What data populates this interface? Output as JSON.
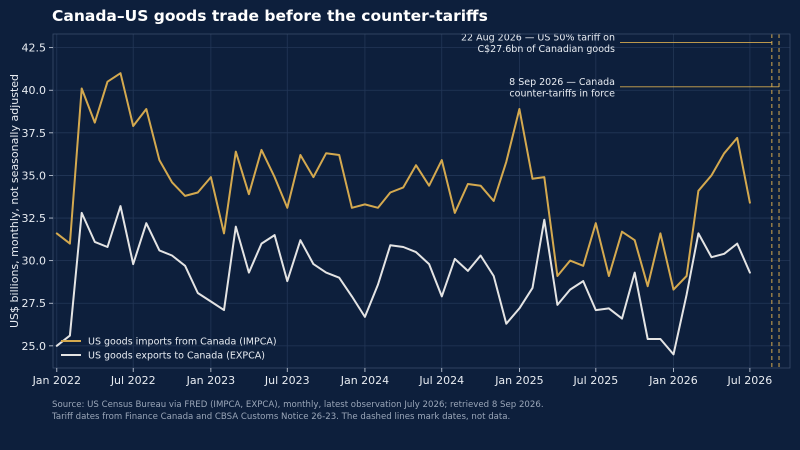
{
  "title": "Canada–US goods trade before the counter-tariffs",
  "source": {
    "line1": "Source: US Census Bureau via FRED (IMPCA, EXPCA), monthly, latest observation July 2026; retrieved 8 Sep 2026.",
    "line2": "Tariff dates from Finance Canada and CBSA Customs Notice 26-23. The dashed lines mark dates, not data."
  },
  "colors": {
    "background": "#0d1f3c",
    "plot_border": "#3a4c6a",
    "grid": "#233757",
    "imports": "#d4a94f",
    "exports": "#e4e4e4",
    "annotation_line": "#d4a94f"
  },
  "chart_data": {
    "type": "line",
    "title": "Canada–US goods trade before the counter-tariffs",
    "xlabel": "",
    "ylabel": "US$ billions, monthly, not seasonally adjusted",
    "x_start": "2022-01",
    "xlim": [
      "2021-12-23",
      "2026-10-04"
    ],
    "ylim": [
      23.7,
      43.3
    ],
    "yticks": [
      25.0,
      27.5,
      30.0,
      32.5,
      35.0,
      37.5,
      40.0,
      42.5
    ],
    "ytick_labels": [
      "25.0",
      "27.5",
      "30.0",
      "32.5",
      "35.0",
      "37.5",
      "40.0",
      "42.5"
    ],
    "xticks": [
      "2022-01-01",
      "2022-07-01",
      "2023-01-01",
      "2023-07-01",
      "2024-01-01",
      "2024-07-01",
      "2025-01-01",
      "2025-07-01",
      "2026-01-01",
      "2026-07-01"
    ],
    "xtick_labels": [
      "Jan 2022",
      "Jul 2022",
      "Jan 2023",
      "Jul 2023",
      "Jan 2024",
      "Jul 2024",
      "Jan 2025",
      "Jul 2025",
      "Jan 2026",
      "Jul 2026"
    ],
    "grid": true,
    "legend_position": "bottom-left",
    "series": [
      {
        "name": "US goods imports from Canada (IMPCA)",
        "color": "#d4a94f",
        "values": [
          31.6,
          31.0,
          40.1,
          38.1,
          40.5,
          41.0,
          37.9,
          38.9,
          35.9,
          34.6,
          33.8,
          34.0,
          34.9,
          31.6,
          36.4,
          33.9,
          36.5,
          34.9,
          33.1,
          36.2,
          34.9,
          36.3,
          36.2,
          33.1,
          33.3,
          33.1,
          34.0,
          34.3,
          35.6,
          34.4,
          35.9,
          32.8,
          34.5,
          34.4,
          33.5,
          35.8,
          38.9,
          34.8,
          34.9,
          29.1,
          30.0,
          29.7,
          32.2,
          29.1,
          31.7,
          31.2,
          28.5,
          31.6,
          28.3,
          29.1,
          34.1,
          35.0,
          36.3,
          37.2,
          33.4
        ]
      },
      {
        "name": "US goods exports to Canada (EXPCA)",
        "color": "#e4e4e4",
        "values": [
          25.0,
          25.6,
          32.8,
          31.1,
          30.8,
          33.2,
          29.8,
          32.2,
          30.6,
          30.3,
          29.7,
          28.1,
          27.6,
          27.1,
          32.0,
          29.3,
          31.0,
          31.5,
          28.8,
          31.2,
          29.8,
          29.3,
          29.0,
          27.9,
          26.7,
          28.6,
          30.9,
          30.8,
          30.5,
          29.8,
          27.9,
          30.1,
          29.4,
          30.3,
          29.1,
          26.3,
          27.2,
          28.4,
          32.4,
          27.4,
          28.3,
          28.8,
          27.1,
          27.2,
          26.6,
          29.3,
          25.4,
          25.4,
          24.5,
          28.0,
          31.6,
          30.2,
          30.4,
          31.0,
          29.3
        ]
      }
    ],
    "annotations": [
      {
        "date": "2026-08-22",
        "text_line1": "22 Aug 2026 — US 50% tariff on",
        "text_line2": "C$27.6bn of Canadian goods",
        "y": 42.8
      },
      {
        "date": "2026-09-08",
        "text_line1": "8 Sep 2026 — Canada",
        "text_line2": "counter-tariffs in force",
        "y": 40.2
      }
    ]
  }
}
